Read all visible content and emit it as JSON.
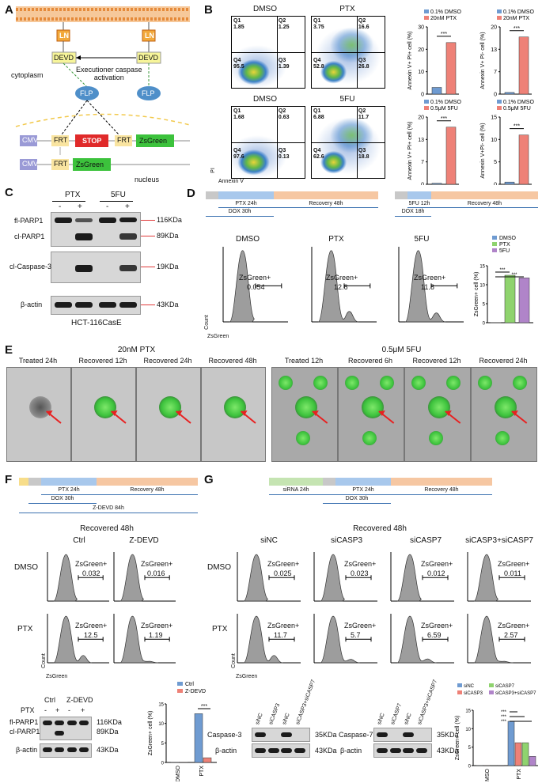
{
  "panels": {
    "A": {
      "label": "A",
      "ln_left": "LN",
      "ln_right": "LN",
      "devd_left": "DEVD",
      "devd_right": "DEVD",
      "activation": "Executioner caspase\nactivation",
      "cytoplasm": "cytoplasm",
      "flp_left": "FLP",
      "flp_right": "FLP",
      "cmv1": "CMV",
      "frt1": "FRT",
      "stop": "STOP",
      "frt2": "FRT",
      "zsgreen1": "ZsGreen",
      "cmv2": "CMV",
      "frt3": "FRT",
      "zsgreen2": "ZsGreen",
      "nucleus": "nucleus"
    },
    "B": {
      "label": "B",
      "plots": [
        {
          "title": "DMSO",
          "q1": "Q1\n1.85",
          "q2": "Q2\n1.25",
          "q3": "Q3\n1.39",
          "q4": "Q4\n95.5"
        },
        {
          "title": "PTX",
          "q1": "Q1\n3.75",
          "q2": "Q2\n16.6",
          "q3": "Q3\n26.8",
          "q4": "Q4\n52.8"
        },
        {
          "title": "DMSO",
          "q1": "Q1\n1.68",
          "q2": "Q2\n0.63",
          "q3": "Q3\n0.13",
          "q4": "Q4\n97.6"
        },
        {
          "title": "5FU",
          "q1": "Q1\n6.88",
          "q2": "Q2\n11.7",
          "q3": "Q3\n18.8",
          "q4": "Q4\n62.6"
        }
      ],
      "xaxis": "Annexin V",
      "yaxis": "PI",
      "bars": [
        {
          "legend1": "0.1% DMSO",
          "legend2": "20nM PTX",
          "ylabel": "Annexin V+ PI+ cell (%)",
          "sig": "***"
        },
        {
          "legend1": "0.1% DMSO",
          "legend2": "20nM PTX",
          "ylabel": "Annexin V+ PI- cell (%)",
          "sig": "***"
        },
        {
          "legend1": "0.1% DMSO",
          "legend2": "0.5μM 5FU",
          "ylabel": "Annexin V+ PI+ cell (%)",
          "sig": "***"
        },
        {
          "legend1": "0.1% DMSO",
          "legend2": "0.5μM 5FU",
          "ylabel": "Annexin V+PI- cell (%)",
          "sig": "***"
        }
      ]
    },
    "C": {
      "label": "C",
      "ptx": "PTX",
      "fu": "5FU",
      "minus1": "-",
      "plus1": "+",
      "minus2": "-",
      "plus2": "+",
      "rows": [
        "fl-PARP1",
        "cl-PARP1",
        "cl-Caspase-3",
        "β-actin"
      ],
      "sizes": [
        "116KDa",
        "89KDa",
        "19KDa",
        "43KDa"
      ],
      "cellline": "HCT-116CasE"
    },
    "D": {
      "label": "D",
      "ptx24": "PTX 24h",
      "recovery1": "Recovery 48h",
      "dox30": "DOX 30h",
      "fu12": "5FU 12h",
      "recovery2": "Recovery 48h",
      "dox18": "DOX 18h",
      "hist": [
        {
          "title": "DMSO",
          "gate": "ZsGreen+",
          "value": "0.054"
        },
        {
          "title": "PTX",
          "gate": "ZsGreen+",
          "value": "12.6"
        },
        {
          "title": "5FU",
          "gate": "ZsGreen+",
          "value": "11.8"
        }
      ],
      "xlabel": "ZsGreen",
      "ylabel": "Count",
      "legend": [
        "DMSO",
        "PTX",
        "5FU"
      ],
      "bar_ylabel": "ZsGreen+ cell (%)"
    },
    "E": {
      "label": "E",
      "group1": "20nM PTX",
      "group2": "0.5μM 5FU",
      "frames": [
        "Treated 24h",
        "Recovered 12h",
        "Recovered 24h",
        "Recovered 48h",
        "Treated 12h",
        "Recovered 6h",
        "Recovered 12h",
        "Recovered 24h"
      ]
    },
    "F": {
      "label": "F",
      "ptx24": "PTX 24h",
      "recovery": "Recovery 48h",
      "dox30": "DOX 30h",
      "zdevd": "Z-DEVD 84h",
      "recovered": "Recovered 48h",
      "col1": "Ctrl",
      "col2": "Z-DEVD",
      "row1": "DMSO",
      "row2": "PTX",
      "hist": [
        {
          "gate": "ZsGreen+",
          "value": "0.032"
        },
        {
          "gate": "ZsGreen+",
          "value": "0.016"
        },
        {
          "gate": "ZsGreen+",
          "value": "12.5"
        },
        {
          "gate": "ZsGreen+",
          "value": "1.19"
        }
      ],
      "xlabel": "ZsGreen",
      "ylabel": "Count",
      "wb_ctrl": "Ctrl",
      "wb_zdevd": "Z-DEVD",
      "wb_ptx": "PTX",
      "wb_signs": [
        "-",
        "+",
        "-",
        "+"
      ],
      "wb_rows": [
        "fl-PARP1",
        "cl-PARP1",
        "β-actin"
      ],
      "wb_sizes": [
        "116KDa",
        "89KDa",
        "43KDa"
      ],
      "bar_legend": [
        "Ctrl",
        "Z-DEVD"
      ],
      "bar_ylabel": "ZsGreen+ cell (%)",
      "bar_x": [
        "DMSO",
        "PTX"
      ],
      "sig": "***"
    },
    "G": {
      "label": "G",
      "sirna": "siRNA 24h",
      "ptx24": "PTX 24h",
      "recovery": "Recovery 48h",
      "dox30": "DOX 30h",
      "recovered": "Recovered 48h",
      "cols": [
        "siNC",
        "siCASP3",
        "siCASP7",
        "siCASP3+siCASP7"
      ],
      "row1": "DMSO",
      "row2": "PTX",
      "hist_dmso": [
        "0.025",
        "0.023",
        "0.012",
        "0.011"
      ],
      "hist_ptx": [
        "11.7",
        "5.7",
        "6.59",
        "2.57"
      ],
      "gate": "ZsGreen+",
      "xlabel": "ZsGreen",
      "ylabel": "Count",
      "wb1_lanes": [
        "siNC",
        "siCASP3",
        "siNC",
        "siCASP3+siCASP7"
      ],
      "wb2_lanes": [
        "siNC",
        "siCASP7",
        "siNC",
        "siCASP3+siCASP7"
      ],
      "casp3": "Caspase-3",
      "casp7": "Caspase-7",
      "actin1": "β-actin",
      "actin2": "β-actin",
      "size35a": "35KDa",
      "size43a": "43KDa",
      "size35b": "35KDa",
      "size43b": "43KDa",
      "bar_legend": [
        "siNC",
        "siCASP7",
        "siCASP3",
        "siCASP3+siCASP7"
      ],
      "bar_ylabel": "ZsGreen+ cell (%)",
      "bar_x": [
        "DMSO",
        "PTX"
      ],
      "sig": "***"
    }
  },
  "chart_data": [
    {
      "type": "bar",
      "categories": [
        "0.1% DMSO",
        "20nM PTX"
      ],
      "values": [
        3,
        23
      ],
      "ylabel": "Annexin V+ PI+ cell (%)",
      "ylim": [
        0,
        30
      ]
    },
    {
      "type": "bar",
      "categories": [
        "0.1% DMSO",
        "20nM PTX"
      ],
      "values": [
        0.5,
        17
      ],
      "ylabel": "Annexin V+ PI- cell (%)",
      "ylim": [
        0,
        20
      ]
    },
    {
      "type": "bar",
      "categories": [
        "0.1% DMSO",
        "0.5μM 5FU"
      ],
      "values": [
        0.3,
        17
      ],
      "ylabel": "Annexin V+ PI+ cell (%)",
      "ylim": [
        0,
        20
      ]
    },
    {
      "type": "bar",
      "categories": [
        "0.1% DMSO",
        "0.5μM 5FU"
      ],
      "values": [
        0.5,
        11
      ],
      "ylabel": "Annexin V+PI- cell (%)",
      "ylim": [
        0,
        15
      ]
    },
    {
      "type": "bar",
      "categories": [
        "DMSO",
        "PTX",
        "5FU"
      ],
      "values": [
        0.05,
        12.5,
        11.8
      ],
      "ylabel": "ZsGreen+ cell (%)",
      "ylim": [
        0,
        15
      ]
    },
    {
      "type": "bar",
      "categories": [
        "DMSO",
        "PTX"
      ],
      "series": [
        {
          "name": "Ctrl",
          "values": [
            0.03,
            12.5
          ]
        },
        {
          "name": "Z-DEVD",
          "values": [
            0.02,
            1.2
          ]
        }
      ],
      "ylabel": "ZsGreen+ cell (%)",
      "ylim": [
        0,
        15
      ]
    },
    {
      "type": "bar",
      "categories": [
        "DMSO",
        "PTX"
      ],
      "series": [
        {
          "name": "siNC",
          "values": [
            0.03,
            12
          ]
        },
        {
          "name": "siCASP3",
          "values": [
            0.02,
            6.2
          ]
        },
        {
          "name": "siCASP7",
          "values": [
            0.01,
            6.2
          ]
        },
        {
          "name": "siCASP3+siCASP7",
          "values": [
            0.01,
            2.5
          ]
        }
      ],
      "ylabel": "ZsGreen+ cell (%)",
      "ylim": [
        0,
        15
      ]
    }
  ],
  "colors": {
    "blue": "#6f9bd1",
    "red": "#ee8177",
    "green": "#8fd36e",
    "purple": "#b084c9",
    "ln": "#f2a93b",
    "devd": "#f7f59a",
    "flp": "#4f8fc9",
    "stop": "#e02a2a",
    "zsgreen": "#3cc23c",
    "cmv": "#9a9ad6",
    "frt": "#f9e4a0",
    "timeline_blue": "#a8c8ec",
    "timeline_orange": "#f6c7a2",
    "timeline_gray": "#c8c8c8",
    "timeline_green": "#c5e4b2",
    "timeline_yellow": "#f7dd8a"
  }
}
